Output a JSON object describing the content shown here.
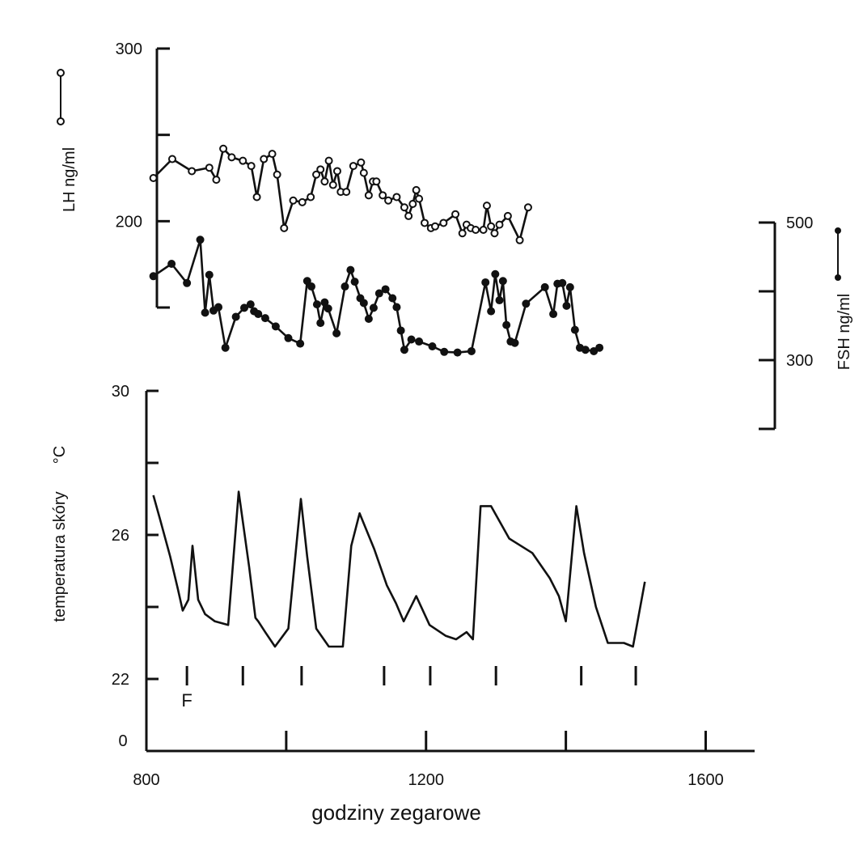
{
  "chart_data": {
    "type": "line",
    "x_axis": {
      "label": "godziny zegarowe",
      "ticks": [
        800,
        1000,
        1200,
        1400,
        1600
      ],
      "tick_labels": [
        "800",
        "",
        "1200",
        "",
        "1600"
      ],
      "range": [
        800,
        1670
      ]
    },
    "lh_axis": {
      "label": "LH ng/ml",
      "range": [
        150,
        300
      ],
      "ticks": [
        150,
        200,
        250,
        300
      ],
      "tick_labels": [
        "",
        "200",
        "",
        "300"
      ],
      "legend_marker": "open-circle"
    },
    "fsh_axis": {
      "label": "FSH ng/ml",
      "range": [
        200,
        500
      ],
      "ticks": [
        200,
        300,
        400,
        500
      ],
      "tick_labels": [
        "",
        "300",
        "",
        "500"
      ],
      "legend_marker": "filled-circle"
    },
    "temp_axis": {
      "label": "temperatura skóry",
      "unit": "°C",
      "range": [
        20,
        30
      ],
      "ticks": [
        22,
        24,
        26,
        28,
        30
      ],
      "tick_labels": [
        "22",
        "",
        "26",
        "",
        "30"
      ],
      "baseline_label": "0"
    },
    "series": [
      {
        "axis": "lh",
        "marker": "open",
        "x": [
          810,
          837,
          865,
          890,
          900,
          910,
          922,
          938,
          950,
          958,
          968,
          980,
          987,
          997,
          1010,
          1023,
          1035,
          1043,
          1049,
          1055,
          1061,
          1067,
          1073,
          1078,
          1086,
          1096,
          1107,
          1111,
          1118,
          1124,
          1129,
          1138,
          1146,
          1158,
          1169,
          1175,
          1181,
          1186,
          1190,
          1198,
          1207,
          1213,
          1225,
          1242,
          1252,
          1258,
          1264,
          1271,
          1282,
          1287,
          1293,
          1298,
          1305,
          1317,
          1334,
          1346
        ],
        "y": [
          225,
          236,
          229,
          231,
          224,
          242,
          237,
          235,
          232,
          214,
          236,
          239,
          227,
          196,
          212,
          211,
          214,
          227,
          230,
          223,
          235,
          221,
          229,
          217,
          217,
          232,
          234,
          228,
          215,
          223,
          223,
          215,
          212,
          214,
          208,
          203,
          210,
          218,
          213,
          199,
          196,
          197,
          199,
          204,
          193,
          198,
          196,
          195,
          195,
          209,
          197,
          193,
          198,
          203,
          189,
          208
        ]
      },
      {
        "axis": "fsh",
        "marker": "filled",
        "x": [
          810,
          836,
          858,
          877,
          884,
          890,
          896,
          903,
          913,
          928,
          940,
          949,
          954,
          960,
          970,
          985,
          1003,
          1020,
          1030,
          1036,
          1044,
          1049,
          1055,
          1060,
          1072,
          1084,
          1092,
          1098,
          1106,
          1111,
          1118,
          1125,
          1133,
          1142,
          1152,
          1158,
          1164,
          1169,
          1179,
          1190,
          1209,
          1226,
          1245,
          1265,
          1285,
          1293,
          1299,
          1305,
          1310,
          1315,
          1321,
          1327,
          1343,
          1370,
          1382,
          1388,
          1395,
          1401,
          1406,
          1413,
          1420,
          1428,
          1440,
          1448
        ],
        "y": [
          422,
          440,
          412,
          475,
          369,
          424,
          372,
          377,
          318,
          363,
          376,
          381,
          371,
          367,
          361,
          349,
          332,
          324,
          415,
          407,
          381,
          354,
          384,
          375,
          339,
          407,
          431,
          414,
          390,
          383,
          360,
          376,
          397,
          403,
          390,
          377,
          343,
          315,
          330,
          327,
          320,
          312,
          311,
          313,
          413,
          371,
          425,
          387,
          415,
          351,
          327,
          325,
          382,
          406,
          367,
          411,
          412,
          379,
          406,
          344,
          318,
          315,
          313,
          318
        ]
      },
      {
        "axis": "temp",
        "marker": "none",
        "x": [
          810,
          820,
          834,
          845,
          852,
          860,
          866,
          874,
          884,
          898,
          917,
          932,
          947,
          956,
          960,
          970,
          984,
          1003,
          1021,
          1030,
          1043,
          1061,
          1081,
          1093,
          1105,
          1126,
          1144,
          1157,
          1168,
          1186,
          1205,
          1228,
          1243,
          1258,
          1267,
          1278,
          1293,
          1319,
          1352,
          1377,
          1390,
          1400,
          1415,
          1426,
          1443,
          1460,
          1483,
          1496,
          1513
        ],
        "y": [
          27.1,
          26.4,
          25.4,
          24.5,
          23.9,
          24.2,
          25.7,
          24.2,
          23.8,
          23.6,
          23.5,
          27.2,
          25.1,
          23.7,
          23.6,
          23.3,
          22.9,
          23.4,
          27.0,
          25.4,
          23.4,
          22.9,
          22.9,
          25.7,
          26.6,
          25.6,
          24.6,
          24.1,
          23.6,
          24.3,
          23.5,
          23.2,
          23.1,
          23.3,
          23.1,
          26.8,
          26.8,
          25.9,
          25.5,
          24.8,
          24.3,
          23.6,
          26.8,
          25.5,
          24.0,
          23.0,
          23.0,
          22.9,
          24.7
        ]
      }
    ],
    "annotations": {
      "pulse_marks_x": [
        858,
        938,
        1022,
        1140,
        1206,
        1300,
        1422,
        1500
      ],
      "pulse_marker_y": 22,
      "f_label": "F",
      "f_label_x": 858
    }
  }
}
